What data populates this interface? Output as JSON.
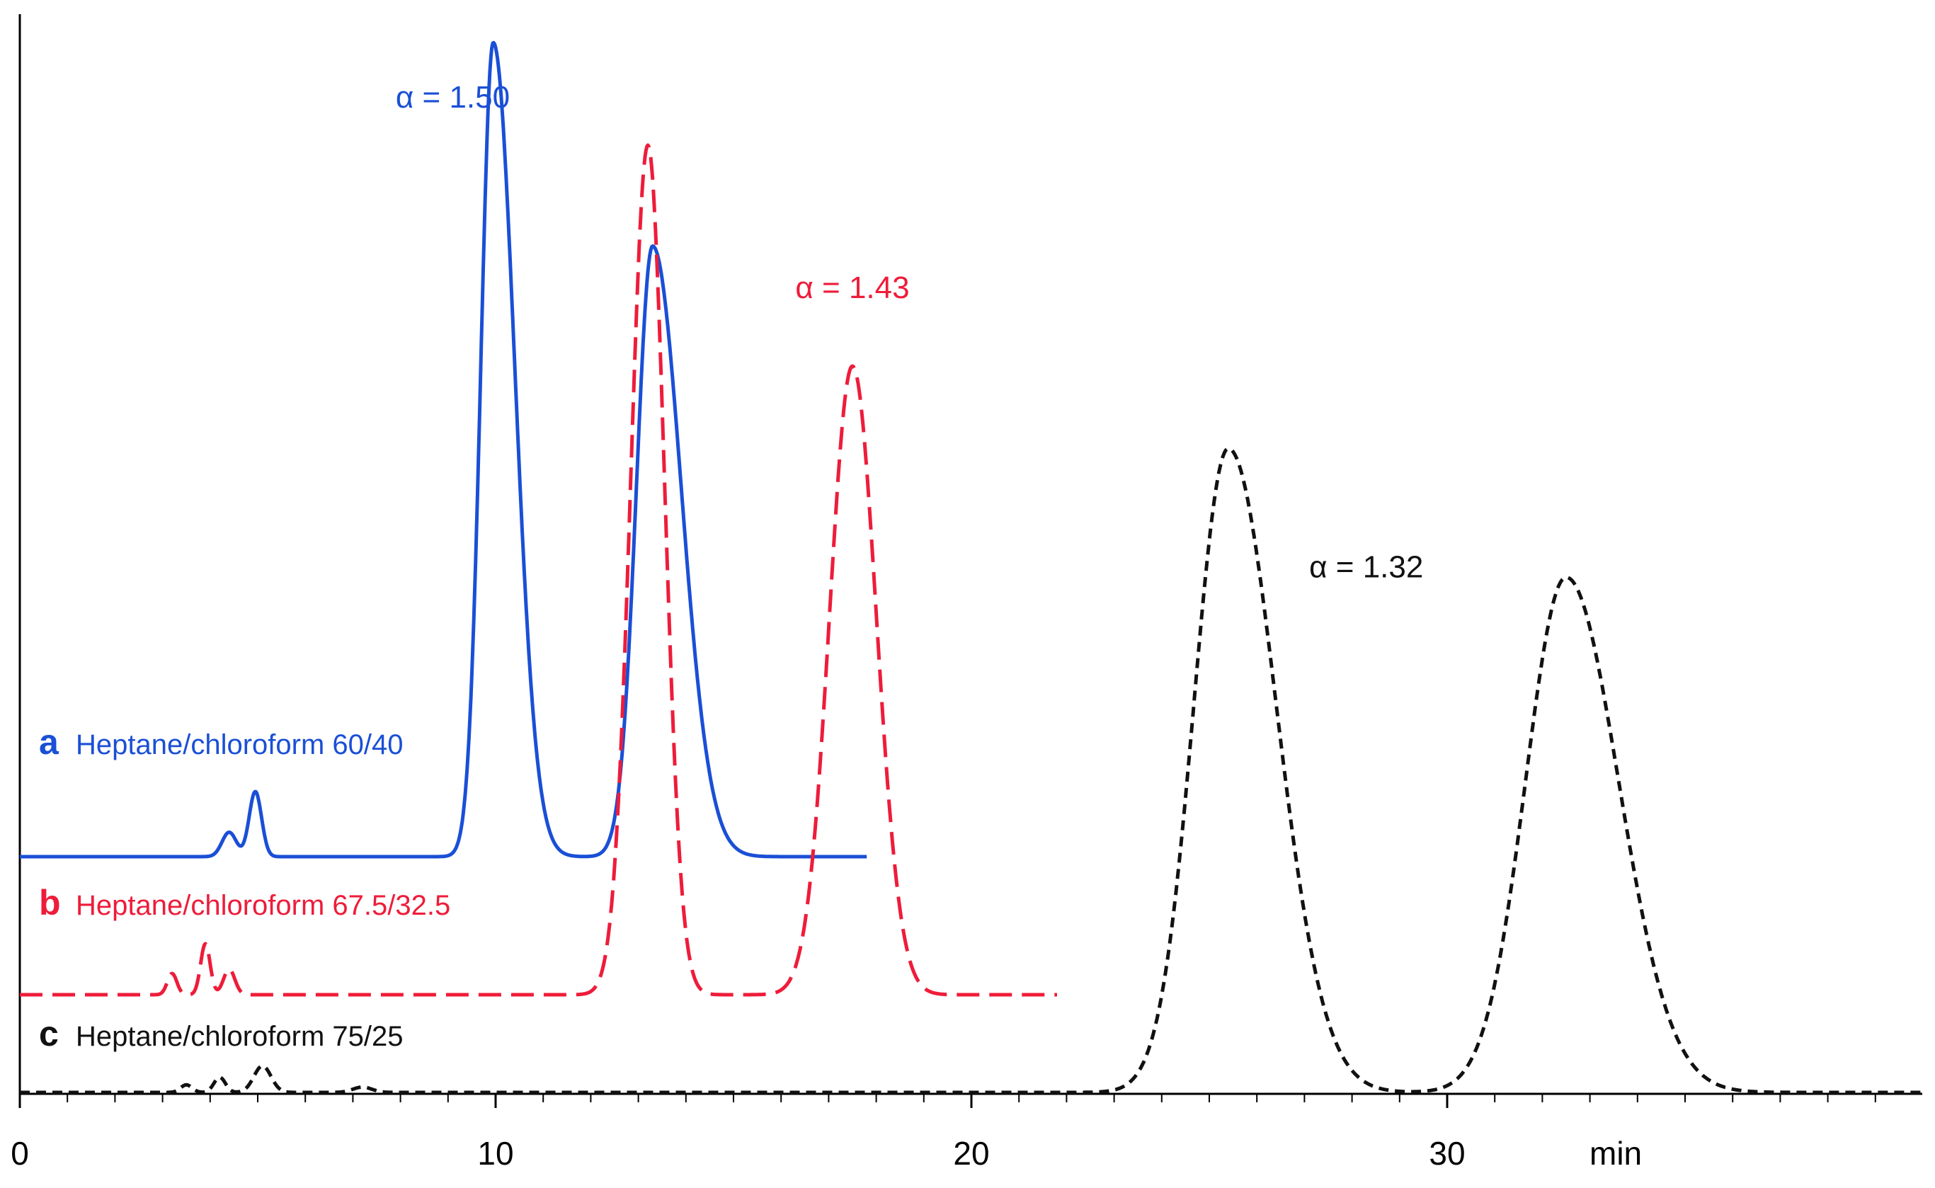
{
  "chart_data": {
    "type": "line",
    "title": "",
    "xlabel": "min",
    "ylabel": "",
    "xlim": [
      0,
      40
    ],
    "x_ticks": [
      "0",
      "10",
      "20",
      "30"
    ],
    "x_tick_values": [
      0,
      10,
      20,
      30
    ],
    "grid": false,
    "series": [
      {
        "id": "a",
        "letter": "a",
        "name": "Heptane/chloroform 60/40",
        "color": "#1a4fd6",
        "style": "solid",
        "x_end": 17.8,
        "baseline": 0.0,
        "peaks": [
          {
            "t": 4.4,
            "h": 0.03,
            "w": 0.15
          },
          {
            "t": 4.95,
            "h": 0.08,
            "w": 0.13
          },
          {
            "t": 9.95,
            "h": 1.0,
            "w": 0.26,
            "tail": 0.45
          },
          {
            "t": 13.3,
            "h": 0.75,
            "w": 0.34,
            "tail": 0.6
          }
        ],
        "annotation": {
          "text": "α = 1.50",
          "x": 7.9,
          "y": 0.92
        }
      },
      {
        "id": "b",
        "letter": "b",
        "name": "Heptane/chloroform 67.5/32.5",
        "color": "#ee1c3a",
        "style": "dashed",
        "x_end": 21.8,
        "baseline": 0.0,
        "peaks": [
          {
            "t": 3.2,
            "h": 0.025,
            "w": 0.1
          },
          {
            "t": 3.9,
            "h": 0.06,
            "w": 0.1
          },
          {
            "t": 4.4,
            "h": 0.03,
            "w": 0.12
          },
          {
            "t": 13.2,
            "h": 1.0,
            "w": 0.36,
            "tail": 0.35
          },
          {
            "t": 17.5,
            "h": 0.74,
            "w": 0.48,
            "tail": 0.5
          }
        ],
        "annotation": {
          "text": "α = 1.43",
          "x": 16.3,
          "y": 0.82
        }
      },
      {
        "id": "c",
        "letter": "c",
        "name": "Heptane/chloroform 75/25",
        "color": "#111111",
        "style": "dotted",
        "x_end": 40.0,
        "baseline": 0.0,
        "peaks": [
          {
            "t": 3.5,
            "h": 0.01,
            "w": 0.12
          },
          {
            "t": 4.2,
            "h": 0.02,
            "w": 0.12
          },
          {
            "t": 5.1,
            "h": 0.035,
            "w": 0.18
          },
          {
            "t": 7.2,
            "h": 0.007,
            "w": 0.2
          },
          {
            "t": 25.4,
            "h": 0.85,
            "w": 0.72,
            "tail": 1.0
          },
          {
            "t": 32.5,
            "h": 0.68,
            "w": 0.85,
            "tail": 1.1
          }
        ],
        "annotation": {
          "text": "α = 1.32",
          "x": 27.1,
          "y": 0.68
        }
      }
    ]
  }
}
